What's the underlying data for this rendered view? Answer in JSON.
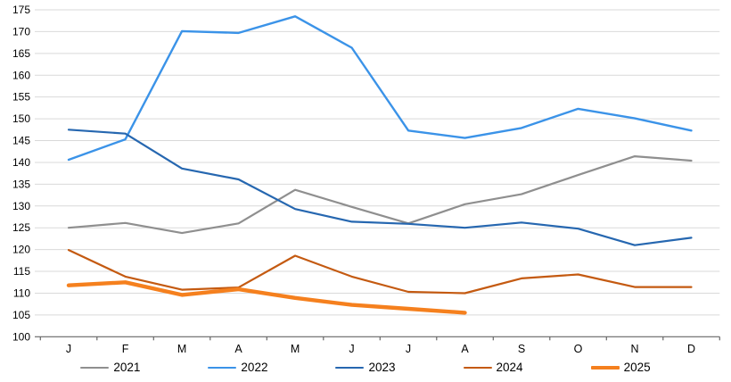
{
  "chart_data": {
    "type": "line",
    "categories": [
      "J",
      "F",
      "M",
      "A",
      "M",
      "J",
      "J",
      "A",
      "S",
      "O",
      "N",
      "D"
    ],
    "series": [
      {
        "name": "2021",
        "color": "#8F8F8F",
        "stroke_width": 2.2,
        "values": [
          125.0,
          126.1,
          123.8,
          126.0,
          133.7,
          129.8,
          126.0,
          130.4,
          132.7,
          137.1,
          141.4,
          140.4
        ]
      },
      {
        "name": "2022",
        "color": "#3B93E8",
        "stroke_width": 2.4,
        "values": [
          140.6,
          145.3,
          170.1,
          169.7,
          173.5,
          166.3,
          147.3,
          145.6,
          147.9,
          152.3,
          150.1,
          147.3
        ]
      },
      {
        "name": "2023",
        "color": "#2667B0",
        "stroke_width": 2.2,
        "values": [
          147.5,
          146.6,
          138.6,
          136.1,
          129.3,
          126.4,
          125.9,
          125.0,
          126.2,
          124.8,
          121.0,
          122.7
        ]
      },
      {
        "name": "2024",
        "color": "#C45A11",
        "stroke_width": 2.2,
        "values": [
          119.9,
          113.8,
          110.8,
          111.3,
          118.6,
          113.8,
          110.3,
          110.0,
          113.4,
          114.3,
          111.4,
          111.4
        ]
      },
      {
        "name": "2025",
        "color": "#F5801E",
        "stroke_width": 4.4,
        "values": [
          111.8,
          112.5,
          109.6,
          110.9,
          108.9,
          107.3,
          106.4,
          105.5
        ]
      }
    ],
    "ylim": [
      100,
      175
    ],
    "ytick_step": 5,
    "ytick_labels": [
      "100",
      "105",
      "110",
      "115",
      "120",
      "125",
      "130",
      "135",
      "140",
      "145",
      "150",
      "155",
      "160",
      "165",
      "170",
      "175"
    ],
    "grid": "horizontal",
    "legend_position": "bottom",
    "gridline_color": "#D9D9D9",
    "axis_color": "#666666",
    "text_color": "#000000"
  }
}
